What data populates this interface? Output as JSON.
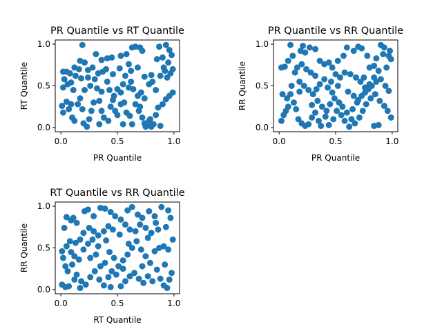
{
  "figure": {
    "background": "#ffffff"
  },
  "chart_data": [
    {
      "type": "scatter",
      "title": "PR Quantile vs RT Quantile",
      "xlabel": "PR Quantile",
      "ylabel": "RT Quantile",
      "xlim": [
        -0.05,
        1.05
      ],
      "ylim": [
        -0.05,
        1.05
      ],
      "xticks": [
        "0.0",
        "0.5",
        "1.0"
      ],
      "yticks": [
        "0.0",
        "0.5",
        "1.0"
      ],
      "grid": false,
      "color": "#1f77b4",
      "points": [
        [
          0.19,
          0.99
        ],
        [
          0.45,
          0.84
        ],
        [
          0.41,
          0.83
        ],
        [
          0.31,
          0.88
        ],
        [
          0.36,
          0.81
        ],
        [
          0.53,
          0.86
        ],
        [
          0.58,
          0.88
        ],
        [
          0.63,
          0.96
        ],
        [
          0.66,
          0.97
        ],
        [
          0.7,
          0.96
        ],
        [
          0.72,
          0.92
        ],
        [
          0.87,
          0.97
        ],
        [
          0.93,
          0.99
        ],
        [
          0.96,
          0.93
        ],
        [
          0.98,
          0.87
        ],
        [
          0.9,
          0.84
        ],
        [
          0.95,
          0.78
        ],
        [
          0.85,
          0.82
        ],
        [
          0.8,
          0.63
        ],
        [
          0.74,
          0.61
        ],
        [
          0.68,
          0.72
        ],
        [
          0.6,
          0.76
        ],
        [
          0.62,
          0.68
        ],
        [
          0.57,
          0.62
        ],
        [
          0.52,
          0.71
        ],
        [
          0.46,
          0.64
        ],
        [
          0.4,
          0.7
        ],
        [
          0.37,
          0.67
        ],
        [
          0.33,
          0.65
        ],
        [
          0.28,
          0.72
        ],
        [
          0.24,
          0.69
        ],
        [
          0.21,
          0.78
        ],
        [
          0.17,
          0.8
        ],
        [
          0.16,
          0.7
        ],
        [
          0.12,
          0.72
        ],
        [
          0.08,
          0.65
        ],
        [
          0.05,
          0.67
        ],
        [
          0.02,
          0.67
        ],
        [
          0.03,
          0.58
        ],
        [
          0.06,
          0.52
        ],
        [
          0.02,
          0.48
        ],
        [
          0.09,
          0.54
        ],
        [
          0.13,
          0.62
        ],
        [
          0.18,
          0.59
        ],
        [
          0.21,
          0.45
        ],
        [
          0.26,
          0.5
        ],
        [
          0.3,
          0.58
        ],
        [
          0.32,
          0.47
        ],
        [
          0.36,
          0.43
        ],
        [
          0.41,
          0.55
        ],
        [
          0.43,
          0.45
        ],
        [
          0.47,
          0.38
        ],
        [
          0.5,
          0.46
        ],
        [
          0.53,
          0.42
        ],
        [
          0.55,
          0.52
        ],
        [
          0.6,
          0.48
        ],
        [
          0.62,
          0.55
        ],
        [
          0.64,
          0.46
        ],
        [
          0.68,
          0.38
        ],
        [
          0.71,
          0.42
        ],
        [
          0.74,
          0.35
        ],
        [
          0.78,
          0.52
        ],
        [
          0.81,
          0.55
        ],
        [
          0.84,
          0.45
        ],
        [
          0.88,
          0.62
        ],
        [
          0.92,
          0.68
        ],
        [
          0.94,
          0.6
        ],
        [
          0.97,
          0.65
        ],
        [
          0.99,
          0.7
        ],
        [
          0.91,
          0.72
        ],
        [
          0.01,
          0.26
        ],
        [
          0.02,
          0.18
        ],
        [
          0.05,
          0.31
        ],
        [
          0.07,
          0.22
        ],
        [
          0.09,
          0.28
        ],
        [
          0.1,
          0.12
        ],
        [
          0.12,
          0.08
        ],
        [
          0.15,
          0.28
        ],
        [
          0.17,
          0.35
        ],
        [
          0.19,
          0.22
        ],
        [
          0.2,
          0.05
        ],
        [
          0.23,
          0.01
        ],
        [
          0.25,
          0.1
        ],
        [
          0.27,
          0.2
        ],
        [
          0.29,
          0.3
        ],
        [
          0.34,
          0.32
        ],
        [
          0.36,
          0.2
        ],
        [
          0.38,
          0.12
        ],
        [
          0.42,
          0.08
        ],
        [
          0.44,
          0.25
        ],
        [
          0.46,
          0.33
        ],
        [
          0.48,
          0.2
        ],
        [
          0.5,
          0.15
        ],
        [
          0.53,
          0.28
        ],
        [
          0.56,
          0.3
        ],
        [
          0.58,
          0.18
        ],
        [
          0.61,
          0.14
        ],
        [
          0.63,
          0.04
        ],
        [
          0.66,
          0.28
        ],
        [
          0.69,
          0.2
        ],
        [
          0.72,
          0.12
        ],
        [
          0.74,
          0.05
        ],
        [
          0.76,
          0.03
        ],
        [
          0.78,
          0.08
        ],
        [
          0.8,
          0.01
        ],
        [
          0.82,
          0.04
        ],
        [
          0.84,
          0.15
        ],
        [
          0.86,
          0.24
        ],
        [
          0.88,
          0.02
        ],
        [
          0.9,
          0.28
        ],
        [
          0.93,
          0.34
        ],
        [
          0.96,
          0.38
        ],
        [
          0.99,
          0.42
        ],
        [
          0.75,
          0.01
        ],
        [
          0.79,
          0.1
        ],
        [
          0.7,
          0.25
        ],
        [
          0.55,
          0.04
        ],
        [
          0.34,
          0.04
        ],
        [
          0.11,
          0.45
        ],
        [
          0.24,
          0.6
        ]
      ]
    },
    {
      "type": "scatter",
      "title": "PR Quantile vs RR Quantile",
      "xlabel": "PR Quantile",
      "ylabel": "RR Quantile",
      "xlim": [
        -0.05,
        1.05
      ],
      "ylim": [
        -0.05,
        1.05
      ],
      "xticks": [
        "0.0",
        "0.5",
        "1.0"
      ],
      "yticks": [
        "0.0",
        "0.5",
        "1.0"
      ],
      "grid": false,
      "color": "#1f77b4",
      "points": [
        [
          0.1,
          0.99
        ],
        [
          0.21,
          0.98
        ],
        [
          0.19,
          0.92
        ],
        [
          0.23,
          0.9
        ],
        [
          0.27,
          0.96
        ],
        [
          0.32,
          0.94
        ],
        [
          0.36,
          0.8
        ],
        [
          0.4,
          0.76
        ],
        [
          0.44,
          0.78
        ],
        [
          0.47,
          0.72
        ],
        [
          0.52,
          0.8
        ],
        [
          0.57,
          0.86
        ],
        [
          0.6,
          0.96
        ],
        [
          0.66,
          0.92
        ],
        [
          0.7,
          0.97
        ],
        [
          0.73,
          0.95
        ],
        [
          0.78,
          0.86
        ],
        [
          0.84,
          0.74
        ],
        [
          0.9,
          0.99
        ],
        [
          0.93,
          0.96
        ],
        [
          0.97,
          0.86
        ],
        [
          0.99,
          0.82
        ],
        [
          0.95,
          0.72
        ],
        [
          0.88,
          0.68
        ],
        [
          0.84,
          0.6
        ],
        [
          0.8,
          0.52
        ],
        [
          0.76,
          0.48
        ],
        [
          0.72,
          0.55
        ],
        [
          0.68,
          0.6
        ],
        [
          0.63,
          0.64
        ],
        [
          0.58,
          0.66
        ],
        [
          0.54,
          0.6
        ],
        [
          0.5,
          0.64
        ],
        [
          0.46,
          0.55
        ],
        [
          0.43,
          0.48
        ],
        [
          0.4,
          0.58
        ],
        [
          0.36,
          0.52
        ],
        [
          0.32,
          0.62
        ],
        [
          0.28,
          0.66
        ],
        [
          0.24,
          0.7
        ],
        [
          0.2,
          0.76
        ],
        [
          0.16,
          0.72
        ],
        [
          0.12,
          0.86
        ],
        [
          0.08,
          0.8
        ],
        [
          0.05,
          0.73
        ],
        [
          0.02,
          0.72
        ],
        [
          0.14,
          0.66
        ],
        [
          0.18,
          0.55
        ],
        [
          0.22,
          0.5
        ],
        [
          0.26,
          0.45
        ],
        [
          0.3,
          0.4
        ],
        [
          0.34,
          0.32
        ],
        [
          0.38,
          0.25
        ],
        [
          0.42,
          0.2
        ],
        [
          0.45,
          0.28
        ],
        [
          0.49,
          0.35
        ],
        [
          0.53,
          0.3
        ],
        [
          0.56,
          0.25
        ],
        [
          0.6,
          0.18
        ],
        [
          0.64,
          0.1
        ],
        [
          0.67,
          0.05
        ],
        [
          0.71,
          0.12
        ],
        [
          0.74,
          0.2
        ],
        [
          0.77,
          0.28
        ],
        [
          0.81,
          0.35
        ],
        [
          0.85,
          0.4
        ],
        [
          0.89,
          0.32
        ],
        [
          0.93,
          0.26
        ],
        [
          0.96,
          0.2
        ],
        [
          0.99,
          0.12
        ],
        [
          0.02,
          0.08
        ],
        [
          0.04,
          0.15
        ],
        [
          0.06,
          0.2
        ],
        [
          0.08,
          0.25
        ],
        [
          0.1,
          0.4
        ],
        [
          0.13,
          0.3
        ],
        [
          0.15,
          0.22
        ],
        [
          0.17,
          0.1
        ],
        [
          0.2,
          0.05
        ],
        [
          0.23,
          0.02
        ],
        [
          0.26,
          0.04
        ],
        [
          0.29,
          0.12
        ],
        [
          0.32,
          0.18
        ],
        [
          0.35,
          0.08
        ],
        [
          0.37,
          0.02
        ],
        [
          0.41,
          0.13
        ],
        [
          0.44,
          0.03
        ],
        [
          0.48,
          0.1
        ],
        [
          0.51,
          0.2
        ],
        [
          0.55,
          0.15
        ],
        [
          0.58,
          0.08
        ],
        [
          0.62,
          0.01
        ],
        [
          0.65,
          0.22
        ],
        [
          0.69,
          0.3
        ],
        [
          0.73,
          0.38
        ],
        [
          0.76,
          0.42
        ],
        [
          0.79,
          0.46
        ],
        [
          0.82,
          0.5
        ],
        [
          0.86,
          0.55
        ],
        [
          0.9,
          0.58
        ],
        [
          0.94,
          0.5
        ],
        [
          0.97,
          0.44
        ],
        [
          0.88,
          0.03
        ],
        [
          0.84,
          0.02
        ],
        [
          0.03,
          0.4
        ],
        [
          0.07,
          0.35
        ],
        [
          0.11,
          0.5
        ],
        [
          0.18,
          0.43
        ],
        [
          0.29,
          0.27
        ],
        [
          0.33,
          0.46
        ],
        [
          0.47,
          0.42
        ],
        [
          0.52,
          0.5
        ],
        [
          0.61,
          0.43
        ],
        [
          0.66,
          0.38
        ],
        [
          0.7,
          0.33
        ],
        [
          0.75,
          0.6
        ],
        [
          0.8,
          0.72
        ],
        [
          0.86,
          0.83
        ],
        [
          0.92,
          0.88
        ],
        [
          0.98,
          0.92
        ]
      ]
    },
    {
      "type": "scatter",
      "title": "RT Quantile vs RR Quantile",
      "xlabel": "RT Quantile",
      "ylabel": "RR Quantile",
      "xlim": [
        -0.05,
        1.05
      ],
      "ylim": [
        -0.05,
        1.05
      ],
      "xticks": [
        "0.0",
        "0.5",
        "1.0"
      ],
      "yticks": [
        "0.0",
        "0.5",
        "1.0"
      ],
      "grid": false,
      "color": "#1f77b4",
      "points": [
        [
          0.05,
          0.87
        ],
        [
          0.09,
          0.83
        ],
        [
          0.11,
          0.86
        ],
        [
          0.14,
          0.8
        ],
        [
          0.21,
          0.94
        ],
        [
          0.24,
          0.96
        ],
        [
          0.29,
          0.88
        ],
        [
          0.35,
          0.98
        ],
        [
          0.39,
          0.97
        ],
        [
          0.44,
          0.93
        ],
        [
          0.48,
          0.88
        ],
        [
          0.53,
          0.84
        ],
        [
          0.59,
          0.95
        ],
        [
          0.63,
          0.99
        ],
        [
          0.68,
          0.9
        ],
        [
          0.72,
          0.86
        ],
        [
          0.78,
          0.94
        ],
        [
          0.83,
          0.88
        ],
        [
          0.89,
          0.99
        ],
        [
          0.95,
          0.95
        ],
        [
          0.97,
          0.86
        ],
        [
          0.93,
          0.75
        ],
        [
          0.86,
          0.72
        ],
        [
          0.8,
          0.68
        ],
        [
          0.75,
          0.74
        ],
        [
          0.7,
          0.78
        ],
        [
          0.66,
          0.7
        ],
        [
          0.61,
          0.72
        ],
        [
          0.57,
          0.78
        ],
        [
          0.52,
          0.66
        ],
        [
          0.46,
          0.72
        ],
        [
          0.42,
          0.76
        ],
        [
          0.38,
          0.7
        ],
        [
          0.33,
          0.65
        ],
        [
          0.29,
          0.7
        ],
        [
          0.25,
          0.74
        ],
        [
          0.2,
          0.68
        ],
        [
          0.17,
          0.6
        ],
        [
          0.13,
          0.56
        ],
        [
          0.08,
          0.58
        ],
        [
          0.03,
          0.74
        ],
        [
          0.05,
          0.52
        ],
        [
          0.09,
          0.45
        ],
        [
          0.12,
          0.4
        ],
        [
          0.16,
          0.36
        ],
        [
          0.2,
          0.48
        ],
        [
          0.24,
          0.55
        ],
        [
          0.28,
          0.6
        ],
        [
          0.31,
          0.42
        ],
        [
          0.35,
          0.28
        ],
        [
          0.39,
          0.32
        ],
        [
          0.43,
          0.45
        ],
        [
          0.47,
          0.38
        ],
        [
          0.51,
          0.28
        ],
        [
          0.55,
          0.35
        ],
        [
          0.59,
          0.42
        ],
        [
          0.63,
          0.5
        ],
        [
          0.67,
          0.58
        ],
        [
          0.71,
          0.48
        ],
        [
          0.75,
          0.4
        ],
        [
          0.79,
          0.32
        ],
        [
          0.83,
          0.46
        ],
        [
          0.87,
          0.5
        ],
        [
          0.91,
          0.52
        ],
        [
          0.95,
          0.48
        ],
        [
          0.99,
          0.6
        ],
        [
          0.01,
          0.46
        ],
        [
          0.02,
          0.38
        ],
        [
          0.04,
          0.28
        ],
        [
          0.06,
          0.22
        ],
        [
          0.1,
          0.3
        ],
        [
          0.14,
          0.18
        ],
        [
          0.18,
          0.1
        ],
        [
          0.22,
          0.06
        ],
        [
          0.26,
          0.15
        ],
        [
          0.3,
          0.22
        ],
        [
          0.34,
          0.12
        ],
        [
          0.38,
          0.05
        ],
        [
          0.42,
          0.15
        ],
        [
          0.45,
          0.22
        ],
        [
          0.49,
          0.18
        ],
        [
          0.53,
          0.04
        ],
        [
          0.57,
          0.1
        ],
        [
          0.61,
          0.16
        ],
        [
          0.65,
          0.2
        ],
        [
          0.69,
          0.13
        ],
        [
          0.73,
          0.08
        ],
        [
          0.77,
          0.16
        ],
        [
          0.81,
          0.1
        ],
        [
          0.85,
          0.24
        ],
        [
          0.88,
          0.13
        ],
        [
          0.91,
          0.05
        ],
        [
          0.94,
          0.02
        ],
        [
          0.96,
          0.12
        ],
        [
          0.98,
          0.2
        ],
        [
          0.01,
          0.06
        ],
        [
          0.04,
          0.03
        ],
        [
          0.07,
          0.04
        ],
        [
          0.12,
          0.12
        ],
        [
          0.17,
          0.02
        ],
        [
          0.44,
          0.03
        ],
        [
          0.55,
          0.25
        ],
        [
          0.6,
          0.55
        ],
        [
          0.72,
          0.28
        ],
        [
          0.77,
          0.62
        ],
        [
          0.84,
          0.8
        ],
        [
          0.92,
          0.3
        ],
        [
          0.26,
          0.38
        ],
        [
          0.33,
          0.52
        ],
        [
          0.4,
          0.59
        ]
      ]
    }
  ]
}
